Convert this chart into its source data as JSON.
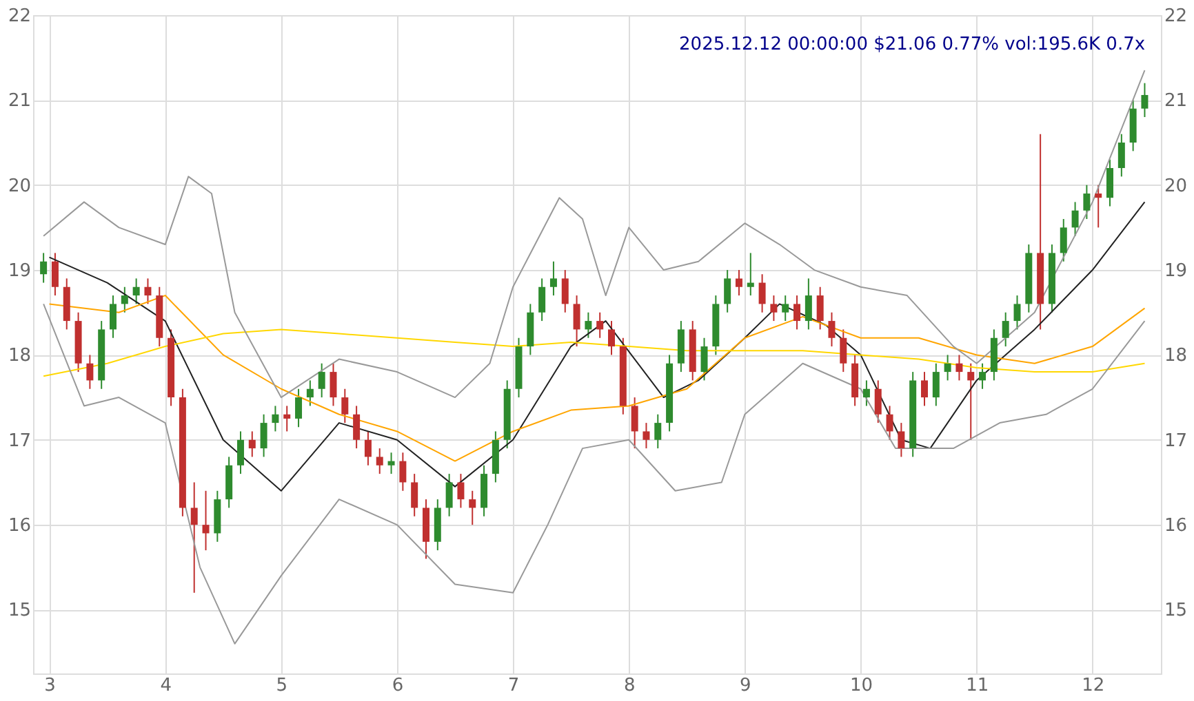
{
  "chart_data": {
    "type": "candlestick",
    "title": "2025.12.12 00:00:00 $21.06 0.77% vol:195.6K 0.7x",
    "x": [
      2.95,
      3.05,
      3.15,
      3.25,
      3.35,
      3.45,
      3.55,
      3.65,
      3.75,
      3.85,
      3.95,
      4.05,
      4.15,
      4.25,
      4.35,
      4.45,
      4.55,
      4.65,
      4.75,
      4.85,
      4.95,
      5.05,
      5.15,
      5.25,
      5.35,
      5.45,
      5.55,
      5.65,
      5.75,
      5.85,
      5.95,
      6.05,
      6.15,
      6.25,
      6.35,
      6.45,
      6.55,
      6.65,
      6.75,
      6.85,
      6.95,
      7.05,
      7.15,
      7.25,
      7.35,
      7.45,
      7.55,
      7.65,
      7.75,
      7.85,
      7.95,
      8.05,
      8.15,
      8.25,
      8.35,
      8.45,
      8.55,
      8.65,
      8.75,
      8.85,
      8.95,
      9.05,
      9.15,
      9.25,
      9.35,
      9.45,
      9.55,
      9.65,
      9.75,
      9.85,
      9.95,
      10.05,
      10.15,
      10.25,
      10.35,
      10.45,
      10.55,
      10.65,
      10.75,
      10.85,
      10.95,
      11.05,
      11.15,
      11.25,
      11.35,
      11.45,
      11.55,
      11.65,
      11.75,
      11.85,
      11.95,
      12.05,
      12.15,
      12.25,
      12.35,
      12.45
    ],
    "ohlc": [
      [
        18.95,
        19.2,
        18.85,
        19.1
      ],
      [
        19.1,
        19.2,
        18.7,
        18.8
      ],
      [
        18.8,
        18.9,
        18.3,
        18.4
      ],
      [
        18.4,
        18.5,
        17.8,
        17.9
      ],
      [
        17.9,
        18.0,
        17.6,
        17.7
      ],
      [
        17.7,
        18.4,
        17.6,
        18.3
      ],
      [
        18.3,
        18.7,
        18.2,
        18.6
      ],
      [
        18.6,
        18.8,
        18.5,
        18.7
      ],
      [
        18.7,
        18.9,
        18.6,
        18.8
      ],
      [
        18.8,
        18.9,
        18.6,
        18.7
      ],
      [
        18.7,
        18.8,
        18.1,
        18.2
      ],
      [
        18.2,
        18.3,
        17.4,
        17.5
      ],
      [
        17.5,
        17.6,
        16.1,
        16.2
      ],
      [
        16.2,
        16.5,
        15.2,
        16.0
      ],
      [
        16.0,
        16.4,
        15.7,
        15.9
      ],
      [
        15.9,
        16.4,
        15.8,
        16.3
      ],
      [
        16.3,
        16.8,
        16.2,
        16.7
      ],
      [
        16.7,
        17.1,
        16.6,
        17.0
      ],
      [
        17.0,
        17.1,
        16.8,
        16.9
      ],
      [
        16.9,
        17.3,
        16.8,
        17.2
      ],
      [
        17.2,
        17.4,
        17.1,
        17.3
      ],
      [
        17.3,
        17.4,
        17.1,
        17.25
      ],
      [
        17.25,
        17.6,
        17.15,
        17.5
      ],
      [
        17.5,
        17.7,
        17.4,
        17.6
      ],
      [
        17.6,
        17.9,
        17.5,
        17.8
      ],
      [
        17.8,
        17.9,
        17.4,
        17.5
      ],
      [
        17.5,
        17.6,
        17.2,
        17.3
      ],
      [
        17.3,
        17.4,
        16.9,
        17.0
      ],
      [
        17.0,
        17.1,
        16.7,
        16.8
      ],
      [
        16.8,
        16.9,
        16.6,
        16.7
      ],
      [
        16.7,
        16.85,
        16.6,
        16.75
      ],
      [
        16.75,
        16.85,
        16.4,
        16.5
      ],
      [
        16.5,
        16.6,
        16.1,
        16.2
      ],
      [
        16.2,
        16.3,
        15.6,
        15.8
      ],
      [
        15.8,
        16.3,
        15.7,
        16.2
      ],
      [
        16.2,
        16.6,
        16.1,
        16.5
      ],
      [
        16.5,
        16.6,
        16.2,
        16.3
      ],
      [
        16.3,
        16.4,
        16.0,
        16.2
      ],
      [
        16.2,
        16.7,
        16.1,
        16.6
      ],
      [
        16.6,
        17.1,
        16.5,
        17.0
      ],
      [
        17.0,
        17.7,
        16.9,
        17.6
      ],
      [
        17.6,
        18.2,
        17.5,
        18.1
      ],
      [
        18.1,
        18.6,
        18.0,
        18.5
      ],
      [
        18.5,
        18.9,
        18.4,
        18.8
      ],
      [
        18.8,
        19.1,
        18.7,
        18.9
      ],
      [
        18.9,
        19.0,
        18.5,
        18.6
      ],
      [
        18.6,
        18.7,
        18.1,
        18.3
      ],
      [
        18.3,
        18.5,
        18.2,
        18.4
      ],
      [
        18.4,
        18.5,
        18.2,
        18.3
      ],
      [
        18.3,
        18.4,
        18.0,
        18.1
      ],
      [
        18.1,
        18.2,
        17.3,
        17.4
      ],
      [
        17.4,
        17.5,
        16.9,
        17.1
      ],
      [
        17.1,
        17.2,
        16.9,
        17.0
      ],
      [
        17.0,
        17.3,
        16.9,
        17.2
      ],
      [
        17.2,
        18.0,
        17.1,
        17.9
      ],
      [
        17.9,
        18.4,
        17.8,
        18.3
      ],
      [
        18.3,
        18.4,
        17.7,
        17.8
      ],
      [
        17.8,
        18.2,
        17.7,
        18.1
      ],
      [
        18.1,
        18.7,
        18.0,
        18.6
      ],
      [
        18.6,
        19.0,
        18.5,
        18.9
      ],
      [
        18.9,
        19.0,
        18.7,
        18.8
      ],
      [
        18.8,
        19.2,
        18.7,
        18.85
      ],
      [
        18.85,
        18.95,
        18.5,
        18.6
      ],
      [
        18.6,
        18.7,
        18.4,
        18.5
      ],
      [
        18.5,
        18.7,
        18.4,
        18.6
      ],
      [
        18.6,
        18.7,
        18.3,
        18.4
      ],
      [
        18.4,
        18.9,
        18.3,
        18.7
      ],
      [
        18.7,
        18.8,
        18.3,
        18.4
      ],
      [
        18.4,
        18.5,
        18.1,
        18.2
      ],
      [
        18.2,
        18.3,
        17.8,
        17.9
      ],
      [
        17.9,
        18.0,
        17.4,
        17.5
      ],
      [
        17.5,
        17.7,
        17.4,
        17.6
      ],
      [
        17.6,
        17.7,
        17.2,
        17.3
      ],
      [
        17.3,
        17.4,
        17.0,
        17.1
      ],
      [
        17.1,
        17.2,
        16.8,
        16.9
      ],
      [
        16.9,
        17.8,
        16.8,
        17.7
      ],
      [
        17.7,
        17.8,
        17.4,
        17.5
      ],
      [
        17.5,
        17.9,
        17.4,
        17.8
      ],
      [
        17.8,
        18.0,
        17.7,
        17.9
      ],
      [
        17.9,
        18.0,
        17.7,
        17.8
      ],
      [
        17.8,
        17.9,
        17.0,
        17.7
      ],
      [
        17.7,
        17.9,
        17.6,
        17.8
      ],
      [
        17.8,
        18.3,
        17.7,
        18.2
      ],
      [
        18.2,
        18.5,
        18.1,
        18.4
      ],
      [
        18.4,
        18.7,
        18.3,
        18.6
      ],
      [
        18.6,
        19.3,
        18.5,
        19.2
      ],
      [
        19.2,
        20.6,
        18.3,
        18.6
      ],
      [
        18.6,
        19.3,
        18.5,
        19.2
      ],
      [
        19.2,
        19.6,
        19.1,
        19.5
      ],
      [
        19.5,
        19.8,
        19.4,
        19.7
      ],
      [
        19.7,
        20.0,
        19.6,
        19.9
      ],
      [
        19.9,
        20.0,
        19.5,
        19.85
      ],
      [
        19.85,
        20.3,
        19.75,
        20.2
      ],
      [
        20.2,
        20.6,
        20.1,
        20.5
      ],
      [
        20.5,
        21.0,
        20.4,
        20.9
      ],
      [
        20.9,
        21.2,
        20.8,
        21.06
      ]
    ],
    "series": [
      {
        "type": "line",
        "color": "#222222",
        "x": [
          3.0,
          3.5,
          4.0,
          4.5,
          5.0,
          5.5,
          6.0,
          6.5,
          7.0,
          7.5,
          7.8,
          8.3,
          8.6,
          9.0,
          9.3,
          9.7,
          10.0,
          10.35,
          10.6,
          11.0,
          11.5,
          12.0,
          12.45
        ],
        "values": [
          19.15,
          18.85,
          18.4,
          17.0,
          16.4,
          17.2,
          17.0,
          16.45,
          17.0,
          18.1,
          18.4,
          17.5,
          17.7,
          18.2,
          18.6,
          18.35,
          18.0,
          17.0,
          16.9,
          17.7,
          18.3,
          19.0,
          19.8
        ]
      },
      {
        "type": "line",
        "color": "#ffa500",
        "x": [
          3.0,
          3.6,
          4.0,
          4.5,
          5.0,
          5.5,
          6.0,
          6.5,
          7.0,
          7.5,
          8.0,
          8.5,
          9.0,
          9.5,
          10.0,
          10.5,
          11.0,
          11.5,
          12.0,
          12.45
        ],
        "values": [
          18.6,
          18.5,
          18.7,
          18.0,
          17.6,
          17.3,
          17.1,
          16.75,
          17.1,
          17.35,
          17.4,
          17.6,
          18.2,
          18.45,
          18.2,
          18.2,
          18.0,
          17.9,
          18.1,
          18.55
        ]
      },
      {
        "type": "line",
        "color": "#ffd700",
        "x": [
          2.95,
          3.5,
          4.0,
          4.5,
          5.0,
          5.5,
          6.0,
          6.5,
          7.0,
          7.5,
          8.0,
          8.5,
          9.0,
          9.5,
          10.0,
          10.5,
          11.0,
          11.5,
          12.0,
          12.45
        ],
        "values": [
          17.75,
          17.9,
          18.1,
          18.25,
          18.3,
          18.25,
          18.2,
          18.15,
          18.1,
          18.15,
          18.1,
          18.05,
          18.05,
          18.05,
          18.0,
          17.95,
          17.85,
          17.8,
          17.8,
          17.9
        ]
      },
      {
        "type": "line",
        "color": "#999999",
        "x": [
          2.95,
          3.3,
          3.6,
          4.0,
          4.2,
          4.4,
          4.6,
          5.0,
          5.5,
          6.0,
          6.5,
          6.8,
          7.0,
          7.4,
          7.6,
          7.8,
          8.0,
          8.3,
          8.6,
          9.0,
          9.3,
          9.6,
          10.0,
          10.4,
          10.8,
          11.0,
          11.5,
          12.0,
          12.45
        ],
        "values": [
          19.4,
          19.8,
          19.5,
          19.3,
          20.1,
          19.9,
          18.5,
          17.5,
          17.95,
          17.8,
          17.5,
          17.9,
          18.8,
          19.85,
          19.6,
          18.7,
          19.5,
          19.0,
          19.1,
          19.55,
          19.3,
          19.0,
          18.8,
          18.7,
          18.1,
          17.9,
          18.5,
          19.8,
          21.35
        ]
      },
      {
        "type": "line",
        "color": "#999999",
        "x": [
          2.95,
          3.3,
          3.6,
          4.0,
          4.3,
          4.6,
          5.0,
          5.5,
          6.0,
          6.5,
          7.0,
          7.3,
          7.6,
          8.0,
          8.4,
          8.8,
          9.0,
          9.5,
          10.0,
          10.3,
          10.8,
          11.2,
          11.6,
          12.0,
          12.45
        ],
        "values": [
          18.6,
          17.4,
          17.5,
          17.2,
          15.5,
          14.6,
          15.4,
          16.3,
          16.0,
          15.3,
          15.2,
          16.0,
          16.9,
          17.0,
          16.4,
          16.5,
          17.3,
          17.9,
          17.6,
          16.9,
          16.9,
          17.2,
          17.3,
          17.6,
          18.4
        ]
      }
    ],
    "xlim": [
      2.86,
      12.59
    ],
    "xticks": [
      3,
      4,
      5,
      6,
      7,
      8,
      9,
      10,
      11,
      12
    ],
    "ylim": [
      14.25,
      22
    ],
    "yticks": [
      15,
      16,
      17,
      18,
      19,
      20,
      21,
      22
    ],
    "y2lim": [
      14.25,
      22
    ],
    "y2ticks": [
      15,
      16,
      17,
      18,
      19,
      20,
      21,
      22
    ],
    "grid": true
  }
}
